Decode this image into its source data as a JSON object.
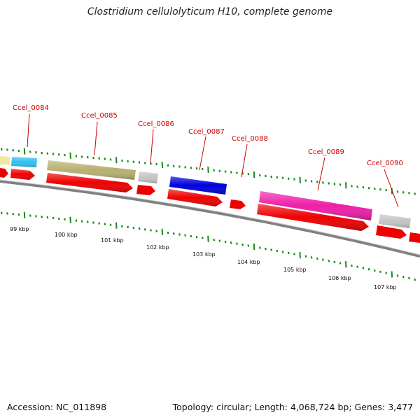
{
  "title": "Clostridium cellulolyticum H10, complete genome",
  "footer": {
    "accession": "Accession: NC_011898",
    "summary": "Topology: circular; Length: 4,068,724 bp; Genes: 3,477"
  },
  "genes": [
    {
      "label": "Ccel_0084",
      "color": "#2ec0f0"
    },
    {
      "label": "Ccel_0085",
      "color": "#b8b070"
    },
    {
      "label": "Ccel_0086",
      "color": "#c4c4c4"
    },
    {
      "label": "Ccel_0087",
      "color": "#0000dd"
    },
    {
      "label": "Ccel_0088",
      "color": "#ee0000"
    },
    {
      "label": "Ccel_0089",
      "color": "#ee1ea8"
    },
    {
      "label": "Ccel_0090",
      "color": "#c4c4c4"
    }
  ],
  "ticks": [
    "99 kbp",
    "100 kbp",
    "101 kbp",
    "102 kbp",
    "103 kbp",
    "104 kbp",
    "105 kbp",
    "106 kbp",
    "107 kbp"
  ],
  "colors": {
    "cds": "#ee0000",
    "backbone": "#808080",
    "tick": "#1a8a1a"
  }
}
